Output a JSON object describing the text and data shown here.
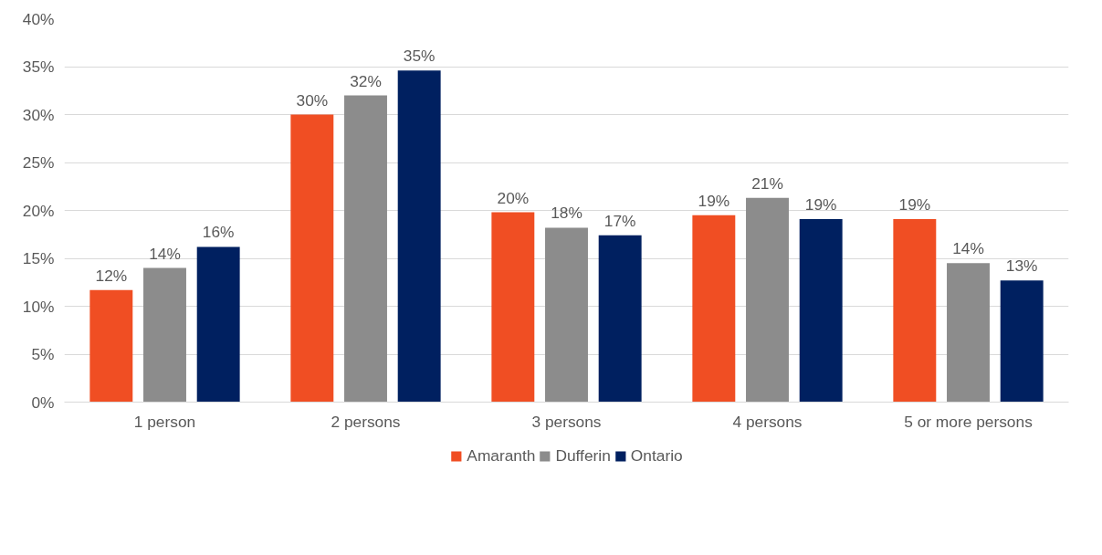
{
  "chart_data": {
    "type": "bar",
    "categories": [
      "1 person",
      "2 persons",
      "3 persons",
      "4 persons",
      "5 or more persons"
    ],
    "series": [
      {
        "name": "Amaranth",
        "color": "#f04e23",
        "values": [
          11.7,
          30.0,
          19.8,
          19.5,
          19.1
        ],
        "value_labels": [
          "12%",
          "30%",
          "20%",
          "19%",
          "19%"
        ]
      },
      {
        "name": "Dufferin",
        "color": "#8c8c8c",
        "values": [
          14.0,
          32.0,
          18.2,
          21.3,
          14.5
        ],
        "value_labels": [
          "14%",
          "32%",
          "18%",
          "21%",
          "14%"
        ]
      },
      {
        "name": "Ontario",
        "color": "#002060",
        "values": [
          16.2,
          34.6,
          17.4,
          19.1,
          12.7
        ],
        "value_labels": [
          "16%",
          "35%",
          "17%",
          "19%",
          "13%"
        ]
      }
    ],
    "ylim": [
      0,
      40
    ],
    "yticks": [
      {
        "value": 0,
        "label": "0%"
      },
      {
        "value": 5,
        "label": "5%"
      },
      {
        "value": 10,
        "label": "10%"
      },
      {
        "value": 15,
        "label": "15%"
      },
      {
        "value": 20,
        "label": "20%"
      },
      {
        "value": 25,
        "label": "25%"
      },
      {
        "value": 30,
        "label": "30%"
      },
      {
        "value": 35,
        "label": "35%"
      },
      {
        "value": 40,
        "label": "40%"
      }
    ],
    "grid": "y",
    "legend": "bottom"
  }
}
